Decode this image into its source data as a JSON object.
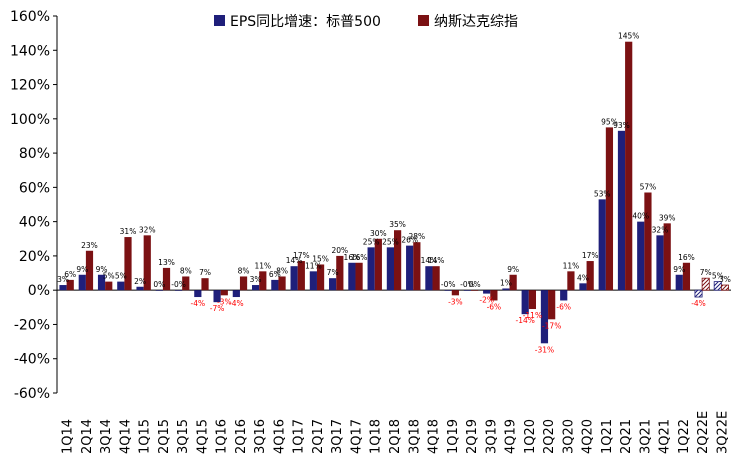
{
  "chart_data": {
    "type": "bar",
    "title": "",
    "xlabel": "",
    "ylabel": "",
    "ylim": [
      -60,
      160
    ],
    "yticks": [
      -60,
      -40,
      -20,
      0,
      20,
      40,
      60,
      80,
      100,
      120,
      140,
      160
    ],
    "ytick_labels": [
      "-60%",
      "-40%",
      "-20%",
      "0%",
      "20%",
      "40%",
      "60%",
      "80%",
      "100%",
      "120%",
      "140%",
      "160%"
    ],
    "grid": false,
    "legend_position": "top-center",
    "categories": [
      "1Q14",
      "2Q14",
      "3Q14",
      "4Q14",
      "1Q15",
      "2Q15",
      "3Q15",
      "4Q15",
      "1Q16",
      "2Q16",
      "3Q16",
      "4Q16",
      "1Q17",
      "2Q17",
      "3Q17",
      "4Q17",
      "1Q18",
      "2Q18",
      "3Q18",
      "4Q18",
      "1Q19",
      "2Q19",
      "3Q19",
      "4Q19",
      "1Q20",
      "2Q20",
      "3Q20",
      "4Q20",
      "1Q21",
      "2Q21",
      "3Q21",
      "4Q21",
      "1Q22",
      "2Q22E",
      "3Q22E"
    ],
    "x_tick_labels": [
      "1Q14",
      "2Q14",
      "3Q14",
      "4Q14",
      "1Q15",
      "2Q15",
      "3Q15",
      "4Q15",
      "1Q16",
      "2Q16",
      "3Q16",
      "4Q16",
      "1Q17",
      "2Q17",
      "3Q17",
      "4Q17",
      "1Q18",
      "2Q18",
      "3Q18",
      "4Q18",
      "1Q19",
      "2Q19",
      "3Q19",
      "4Q19",
      "1Q20",
      "2Q20",
      "3Q20",
      "4Q20",
      "1Q21",
      "2Q21",
      "3Q21",
      "4Q21",
      "1Q22",
      "2Q22E",
      "3Q22E"
    ],
    "estimate_categories": [
      "2Q22E",
      "3Q22E"
    ],
    "series": [
      {
        "name": "EPS同比增速：标普500",
        "color": "#1F1F7A",
        "values": [
          3,
          9,
          9,
          5,
          2,
          0,
          0,
          -4,
          -7,
          -4,
          3,
          6,
          14,
          11,
          7,
          16,
          25,
          25,
          26,
          14,
          0,
          0,
          -2,
          1,
          -14,
          -31,
          -6,
          4,
          53,
          93,
          40,
          32,
          9,
          -4,
          5
        ],
        "labels": [
          "3%",
          "9%",
          "9%",
          "5%",
          "2%",
          "0%",
          "-0%",
          "-4%",
          "-7%",
          "-4%",
          "3%",
          "6%",
          "14%",
          "11%",
          "7%",
          "16%",
          "25%",
          "25%",
          "26%",
          "14%",
          "-0%",
          "-0%",
          "-2%",
          "1%",
          "-14%",
          "-31%",
          "-6%",
          "4%",
          "53%",
          "93%",
          "40%",
          "32%",
          "9%",
          "-4%",
          "5%"
        ]
      },
      {
        "name": "纳斯达克综指",
        "color": "#7B1113",
        "values": [
          6,
          23,
          5,
          31,
          32,
          13,
          8,
          7,
          -3,
          8,
          11,
          8,
          17,
          15,
          20,
          16,
          30,
          35,
          28,
          14,
          -3,
          0,
          -6,
          9,
          -11,
          -17,
          11,
          17,
          95,
          145,
          57,
          39,
          16,
          7,
          3
        ],
        "labels": [
          "6%",
          "23%",
          "5%",
          "31%",
          "32%",
          "13%",
          "8%",
          "7%",
          "-3%",
          "8%",
          "11%",
          "8%",
          "17%",
          "15%",
          "20%",
          "16%",
          "30%",
          "35%",
          "28%",
          "14%",
          "-3%",
          "0%",
          "-6%",
          "9%",
          "-11%",
          "-17%",
          "11%",
          "17%",
          "95%",
          "145%",
          "57%",
          "39%",
          "16%",
          "7%",
          "3%"
        ]
      }
    ]
  }
}
